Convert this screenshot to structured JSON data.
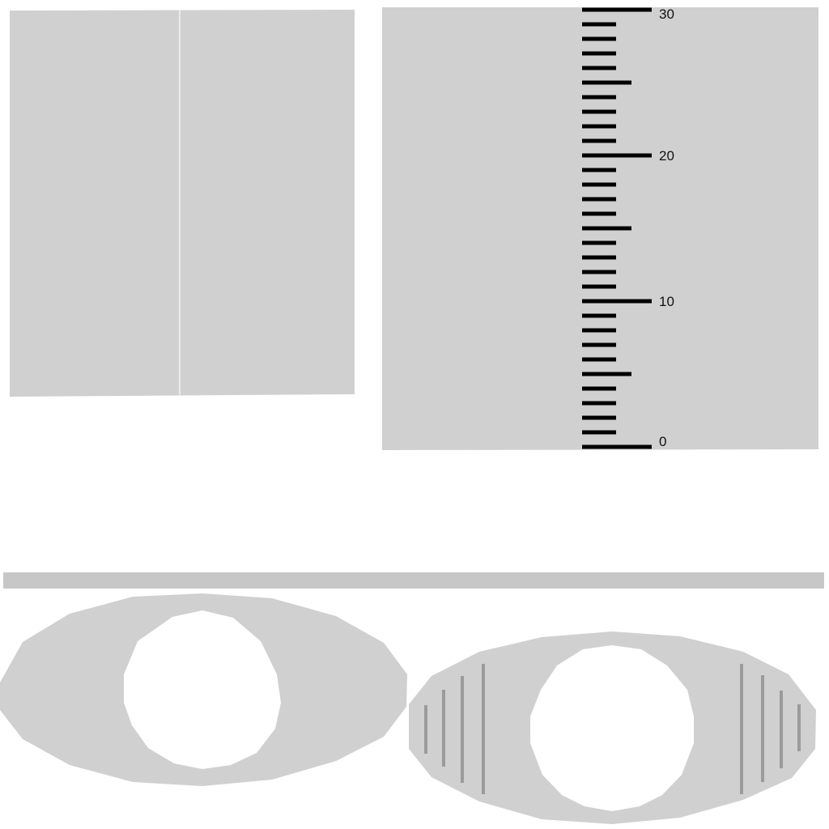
{
  "colors": {
    "background": "#ffffff",
    "panel": "#d0d0d0",
    "bar": "#c7c7c7",
    "ring_fill": "#d0d0d0",
    "hatch": "#9b9b9b",
    "tick": "#000000",
    "label": "#111111"
  },
  "ruler": {
    "min": 0,
    "max": 30,
    "minor_step": 1,
    "mid_step": 5,
    "major_step": 10,
    "labels": [
      {
        "value": 0,
        "text": "0"
      },
      {
        "value": 10,
        "text": "10"
      },
      {
        "value": 20,
        "text": "20"
      },
      {
        "value": 30,
        "text": "30"
      }
    ]
  },
  "shapes": {
    "split_panel": "split-panel",
    "ruler_panel": "ruler-panel",
    "bar": "horizontal-bar",
    "ring_plain": "ring-plain",
    "ring_hatched": "ring-hatched"
  }
}
